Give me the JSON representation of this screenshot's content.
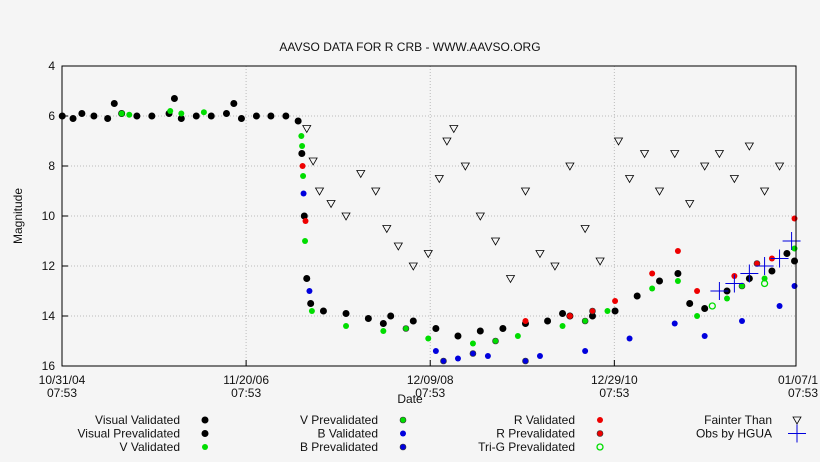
{
  "chart_data": {
    "type": "scatter",
    "title": "AAVSO DATA FOR R CRB - WWW.AAVSO.ORG",
    "xlabel": "Date",
    "ylabel": "Magnitude",
    "ylim": [
      4,
      16
    ],
    "y_inverted": true,
    "yticks": [
      "4",
      "6",
      "8",
      "10",
      "12",
      "14",
      "16"
    ],
    "xlim": [
      "2004-10-31",
      "2013-01-07"
    ],
    "xticks": [
      {
        "date": "2004-10-31",
        "label1": "10/31/04",
        "label2": "07:53"
      },
      {
        "date": "2006-11-20",
        "label1": "11/20/06",
        "label2": "07:53"
      },
      {
        "date": "2008-12-09",
        "label1": "12/09/08",
        "label2": "07:53"
      },
      {
        "date": "2010-12-29",
        "label1": "12/29/10",
        "label2": "07:53"
      },
      {
        "date": "2013-01-07",
        "label1": "01/07/1",
        "label2": "07:53"
      }
    ],
    "grid": true,
    "legend_position": "bottom",
    "series": [
      {
        "name": "Visual Validated",
        "marker": "circle-black",
        "color": "#000000",
        "points": [
          [
            "2004-11-01",
            6.0
          ],
          [
            "2004-12-15",
            6.1
          ],
          [
            "2005-01-20",
            5.9
          ],
          [
            "2005-03-10",
            6.0
          ],
          [
            "2005-05-05",
            6.1
          ],
          [
            "2005-07-01",
            5.9
          ],
          [
            "2005-09-01",
            6.0
          ],
          [
            "2005-11-01",
            6.0
          ],
          [
            "2006-01-10",
            5.9
          ],
          [
            "2006-03-01",
            6.1
          ],
          [
            "2006-05-01",
            6.0
          ],
          [
            "2006-07-01",
            6.0
          ],
          [
            "2006-09-01",
            5.9
          ],
          [
            "2006-11-01",
            6.1
          ],
          [
            "2007-01-01",
            6.0
          ],
          [
            "2007-03-01",
            6.0
          ],
          [
            "2007-05-01",
            6.0
          ],
          [
            "2007-06-20",
            6.2
          ],
          [
            "2007-07-05",
            7.5
          ],
          [
            "2007-07-15",
            10.0
          ],
          [
            "2007-07-25",
            12.5
          ],
          [
            "2007-08-10",
            13.5
          ],
          [
            "2007-10-01",
            13.8
          ],
          [
            "2008-01-01",
            13.9
          ],
          [
            "2008-04-01",
            14.1
          ],
          [
            "2008-07-01",
            14.0
          ],
          [
            "2008-10-01",
            14.2
          ],
          [
            "2009-01-01",
            14.5
          ],
          [
            "2009-04-01",
            14.8
          ],
          [
            "2009-07-01",
            14.6
          ],
          [
            "2009-10-01",
            14.5
          ],
          [
            "2010-01-01",
            14.3
          ],
          [
            "2010-04-01",
            14.2
          ],
          [
            "2010-07-01",
            14.0
          ],
          [
            "2010-10-01",
            14.0
          ],
          [
            "2011-01-01",
            13.8
          ],
          [
            "2011-04-01",
            13.2
          ],
          [
            "2011-07-01",
            12.6
          ],
          [
            "2011-09-14",
            12.3
          ],
          [
            "2011-11-01",
            13.5
          ],
          [
            "2012-01-01",
            13.7
          ],
          [
            "2012-04-01",
            13.0
          ],
          [
            "2012-07-01",
            12.5
          ],
          [
            "2012-10-01",
            12.2
          ],
          [
            "2013-01-01",
            11.8
          ]
        ]
      },
      {
        "name": "Visual Prevalidated",
        "marker": "circle-black",
        "color": "#000000",
        "points": [
          [
            "2005-06-01",
            5.5
          ],
          [
            "2006-02-01",
            5.3
          ],
          [
            "2006-10-01",
            5.5
          ],
          [
            "2008-06-01",
            14.3
          ],
          [
            "2010-06-01",
            13.9
          ],
          [
            "2012-12-01",
            11.5
          ]
        ]
      },
      {
        "name": "V Validated",
        "marker": "dot",
        "color": "#00dd00",
        "points": [
          [
            "2005-07-01",
            5.9
          ],
          [
            "2005-08-01",
            5.95
          ],
          [
            "2006-01-15",
            5.8
          ],
          [
            "2006-03-01",
            5.9
          ],
          [
            "2006-06-01",
            5.85
          ],
          [
            "2007-07-03",
            6.8
          ],
          [
            "2007-07-06",
            7.2
          ],
          [
            "2007-07-10",
            8.4
          ],
          [
            "2007-07-18",
            11.0
          ],
          [
            "2007-08-15",
            13.8
          ],
          [
            "2008-01-01",
            14.4
          ],
          [
            "2008-06-01",
            14.6
          ],
          [
            "2008-12-01",
            14.9
          ],
          [
            "2009-06-01",
            15.1
          ],
          [
            "2009-12-01",
            14.8
          ],
          [
            "2010-06-01",
            14.4
          ],
          [
            "2010-12-01",
            13.8
          ],
          [
            "2011-06-01",
            12.9
          ],
          [
            "2011-09-14",
            12.6
          ],
          [
            "2011-12-01",
            14.0
          ],
          [
            "2012-04-01",
            13.3
          ],
          [
            "2012-09-01",
            12.5
          ],
          [
            "2013-01-01",
            11.3
          ]
        ]
      },
      {
        "name": "V Prevalidated",
        "marker": "circle-color",
        "color": "#00dd00",
        "points": [
          [
            "2008-09-01",
            14.5
          ],
          [
            "2009-09-01",
            15.0
          ],
          [
            "2010-09-01",
            14.2
          ],
          [
            "2012-06-01",
            12.8
          ]
        ]
      },
      {
        "name": "B Validated",
        "marker": "dot",
        "color": "#0000dd",
        "points": [
          [
            "2007-07-12",
            9.1
          ],
          [
            "2007-08-05",
            13.0
          ],
          [
            "2009-01-01",
            15.4
          ],
          [
            "2009-04-01",
            15.7
          ],
          [
            "2009-08-01",
            15.6
          ],
          [
            "2010-03-01",
            15.6
          ],
          [
            "2010-09-01",
            15.4
          ],
          [
            "2011-03-01",
            14.9
          ],
          [
            "2011-09-01",
            14.3
          ],
          [
            "2012-01-01",
            14.8
          ],
          [
            "2012-06-01",
            14.2
          ],
          [
            "2012-11-01",
            13.6
          ],
          [
            "2013-01-01",
            12.8
          ]
        ]
      },
      {
        "name": "B Prevalidated",
        "marker": "circle-color",
        "color": "#0000dd",
        "points": [
          [
            "2009-02-01",
            15.8
          ],
          [
            "2009-06-01",
            15.5
          ],
          [
            "2010-01-01",
            15.8
          ]
        ]
      },
      {
        "name": "R Validated",
        "marker": "dot",
        "color": "#ee0000",
        "points": [
          [
            "2007-07-08",
            8.0
          ],
          [
            "2007-07-20",
            10.2
          ],
          [
            "2010-01-01",
            14.2
          ],
          [
            "2010-07-01",
            14.0
          ],
          [
            "2011-01-01",
            13.4
          ],
          [
            "2011-06-01",
            12.3
          ],
          [
            "2011-09-14",
            11.4
          ],
          [
            "2011-12-01",
            13.0
          ],
          [
            "2012-05-01",
            12.4
          ],
          [
            "2012-10-01",
            11.7
          ],
          [
            "2013-01-01",
            10.1
          ]
        ]
      },
      {
        "name": "R Prevalidated",
        "marker": "circle-color",
        "color": "#ee0000",
        "points": [
          [
            "2010-10-01",
            13.8
          ],
          [
            "2012-08-01",
            11.9
          ]
        ]
      },
      {
        "name": "Tri-G Prevalidated",
        "marker": "circle-open",
        "color": "#00dd00",
        "points": [
          [
            "2012-02-01",
            13.6
          ],
          [
            "2012-09-01",
            12.7
          ]
        ]
      },
      {
        "name": "Fainter Than",
        "marker": "triangle",
        "color": "#000000",
        "points": [
          [
            "2007-07-25",
            6.5
          ],
          [
            "2007-08-20",
            7.8
          ],
          [
            "2007-09-15",
            9.0
          ],
          [
            "2007-11-01",
            9.5
          ],
          [
            "2008-01-01",
            10.0
          ],
          [
            "2008-03-01",
            8.3
          ],
          [
            "2008-05-01",
            9.0
          ],
          [
            "2008-06-15",
            10.5
          ],
          [
            "2008-08-01",
            11.2
          ],
          [
            "2008-10-01",
            12.0
          ],
          [
            "2008-12-01",
            11.5
          ],
          [
            "2009-01-15",
            8.5
          ],
          [
            "2009-02-15",
            7.0
          ],
          [
            "2009-03-15",
            6.5
          ],
          [
            "2009-05-01",
            8.0
          ],
          [
            "2009-07-01",
            10.0
          ],
          [
            "2009-09-01",
            11.0
          ],
          [
            "2009-11-01",
            12.5
          ],
          [
            "2010-01-01",
            9.0
          ],
          [
            "2010-03-01",
            11.5
          ],
          [
            "2010-05-01",
            12.0
          ],
          [
            "2010-07-01",
            8.0
          ],
          [
            "2010-09-01",
            10.5
          ],
          [
            "2010-11-01",
            11.8
          ],
          [
            "2011-01-15",
            7.0
          ],
          [
            "2011-03-01",
            8.5
          ],
          [
            "2011-05-01",
            7.5
          ],
          [
            "2011-07-01",
            9.0
          ],
          [
            "2011-09-01",
            7.5
          ],
          [
            "2011-11-01",
            9.5
          ],
          [
            "2012-01-01",
            8.0
          ],
          [
            "2012-03-01",
            7.5
          ],
          [
            "2012-05-01",
            8.5
          ],
          [
            "2012-07-01",
            7.2
          ],
          [
            "2012-09-01",
            9.0
          ],
          [
            "2012-11-01",
            8.0
          ]
        ]
      },
      {
        "name": "Obs by HGUA",
        "marker": "cross",
        "color": "#0000dd",
        "points": [
          [
            "2012-03-01",
            13.0
          ],
          [
            "2012-05-01",
            12.7
          ],
          [
            "2012-07-01",
            12.3
          ],
          [
            "2012-09-01",
            12.0
          ],
          [
            "2012-11-01",
            11.7
          ],
          [
            "2012-12-20",
            11.0
          ]
        ]
      }
    ]
  }
}
